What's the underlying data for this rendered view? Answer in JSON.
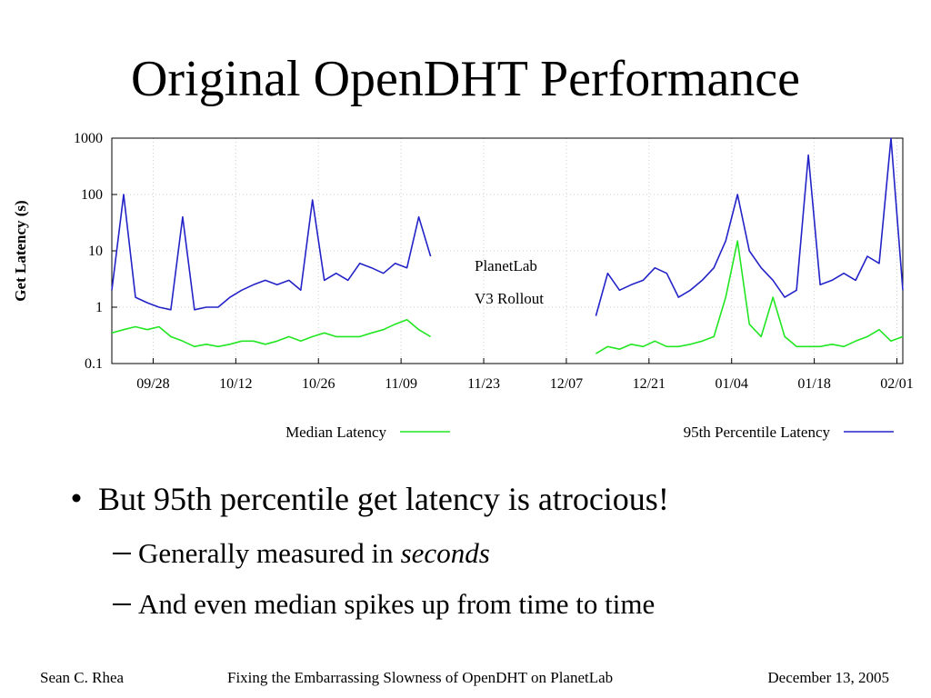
{
  "title": "Original OpenDHT Performance",
  "chart_data": {
    "type": "line",
    "ylabel": "Get Latency (s)",
    "log_y": true,
    "grid": true,
    "legend": "bottom",
    "annotations": [
      "PlanetLab",
      "V3 Rollout"
    ],
    "xlim": [
      0,
      134
    ],
    "ylim": [
      0.1,
      1000
    ],
    "yticks": [
      0.1,
      1,
      10,
      100,
      1000
    ],
    "xticks": [
      {
        "value": 7,
        "label": "09/28"
      },
      {
        "value": 21,
        "label": "10/12"
      },
      {
        "value": 35,
        "label": "10/26"
      },
      {
        "value": 49,
        "label": "11/09"
      },
      {
        "value": 63,
        "label": "11/23"
      },
      {
        "value": 77,
        "label": "12/07"
      },
      {
        "value": 91,
        "label": "12/21"
      },
      {
        "value": 105,
        "label": "01/04"
      },
      {
        "value": 119,
        "label": "01/18"
      },
      {
        "value": 133,
        "label": "02/01"
      }
    ],
    "x": [
      0,
      2,
      4,
      6,
      8,
      10,
      12,
      14,
      16,
      18,
      20,
      22,
      24,
      26,
      28,
      30,
      32,
      34,
      36,
      38,
      40,
      42,
      44,
      46,
      48,
      50,
      52,
      54,
      68,
      82,
      84,
      86,
      88,
      90,
      92,
      94,
      96,
      98,
      100,
      102,
      104,
      106,
      108,
      110,
      112,
      114,
      116,
      118,
      120,
      122,
      124,
      126,
      128,
      130,
      132,
      134
    ],
    "series": [
      {
        "name": "Median Latency",
        "color": "#22e622",
        "values": [
          0.35,
          0.4,
          0.45,
          0.4,
          0.45,
          0.3,
          0.25,
          0.2,
          0.22,
          0.2,
          0.22,
          0.25,
          0.25,
          0.22,
          0.25,
          0.3,
          0.25,
          0.3,
          0.35,
          0.3,
          0.3,
          0.3,
          0.35,
          0.4,
          0.5,
          0.6,
          0.4,
          0.3,
          null,
          0.15,
          0.2,
          0.18,
          0.22,
          0.2,
          0.25,
          0.2,
          0.2,
          0.22,
          0.25,
          0.3,
          1.5,
          15,
          0.5,
          0.3,
          1.5,
          0.3,
          0.2,
          0.2,
          0.2,
          0.22,
          0.2,
          0.25,
          0.3,
          0.4,
          0.25,
          0.3
        ]
      },
      {
        "name": "95th Percentile Latency",
        "color": "#2323c8",
        "values": [
          2,
          100,
          1.5,
          1.2,
          1,
          0.9,
          40,
          0.9,
          1,
          1,
          1.5,
          2,
          2.5,
          3,
          2.5,
          3,
          2,
          80,
          3,
          4,
          3,
          6,
          5,
          4,
          6,
          5,
          40,
          8,
          null,
          0.7,
          4,
          2,
          2.5,
          3,
          5,
          4,
          1.5,
          2,
          3,
          5,
          15,
          100,
          10,
          5,
          3,
          1.5,
          2,
          500,
          2.5,
          3,
          4,
          3,
          8,
          6,
          1000,
          2
        ]
      }
    ]
  },
  "bullets": [
    {
      "text": "But 95th percentile get latency is atrocious!",
      "sub": [
        {
          "text": "Generally measured in",
          "emphasis": "seconds"
        },
        {
          "text": "And even median spikes up from time to time"
        }
      ]
    }
  ],
  "footer": {
    "author": "Sean C. Rhea",
    "talk": "Fixing the Embarrassing Slowness of OpenDHT on PlanetLab",
    "date": "December 13, 2005"
  }
}
